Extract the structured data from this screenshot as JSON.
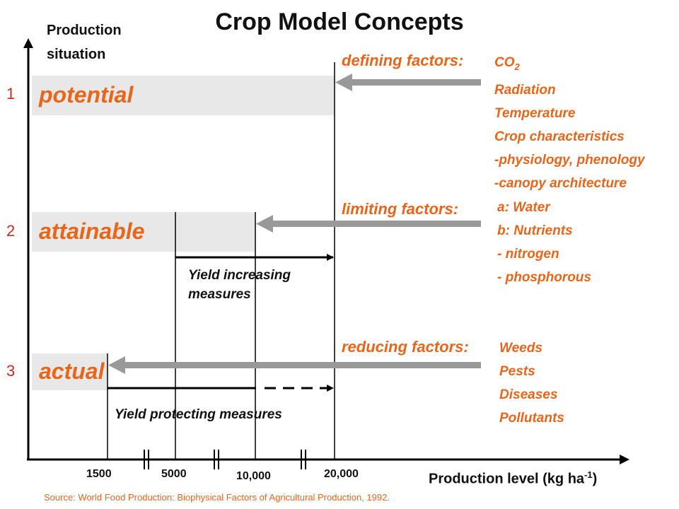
{
  "title": "Crop Model Concepts",
  "y_axis": {
    "label_line1": "Production",
    "label_line2": "situation"
  },
  "levels": [
    {
      "number": "1",
      "name": "potential"
    },
    {
      "number": "2",
      "name": "attainable"
    },
    {
      "number": "3",
      "name": "actual"
    }
  ],
  "defining": {
    "header": "defining factors:",
    "co2_main": "CO",
    "co2_sub": "2",
    "items": [
      "Radiation",
      "Temperature",
      "Crop characteristics",
      "-physiology, phenology",
      "-canopy architecture"
    ]
  },
  "limiting": {
    "header": "limiting factors:",
    "items": [
      "a: Water",
      "b: Nutrients",
      "- nitrogen",
      "- phosphorous"
    ]
  },
  "reducing": {
    "header": "reducing factors:",
    "items": [
      "Weeds",
      "Pests",
      "Diseases",
      "Pollutants"
    ]
  },
  "measures": {
    "increasing_line1": "Yield increasing",
    "increasing_line2": "measures",
    "protecting": "Yield protecting measures"
  },
  "x_axis": {
    "ticks": [
      "1500",
      "5000",
      "10,000",
      "20,000"
    ],
    "label_main": "Production level (kg ha",
    "label_sup": "-1",
    "label_end": ")"
  },
  "source": "Source: World Food Production: Biophysical Factors of Agricultural Production, 1992.",
  "colors": {
    "accent": "#e8651a",
    "number": "#d4281c",
    "band": "#e8e8e8",
    "arrow": "#999999"
  }
}
